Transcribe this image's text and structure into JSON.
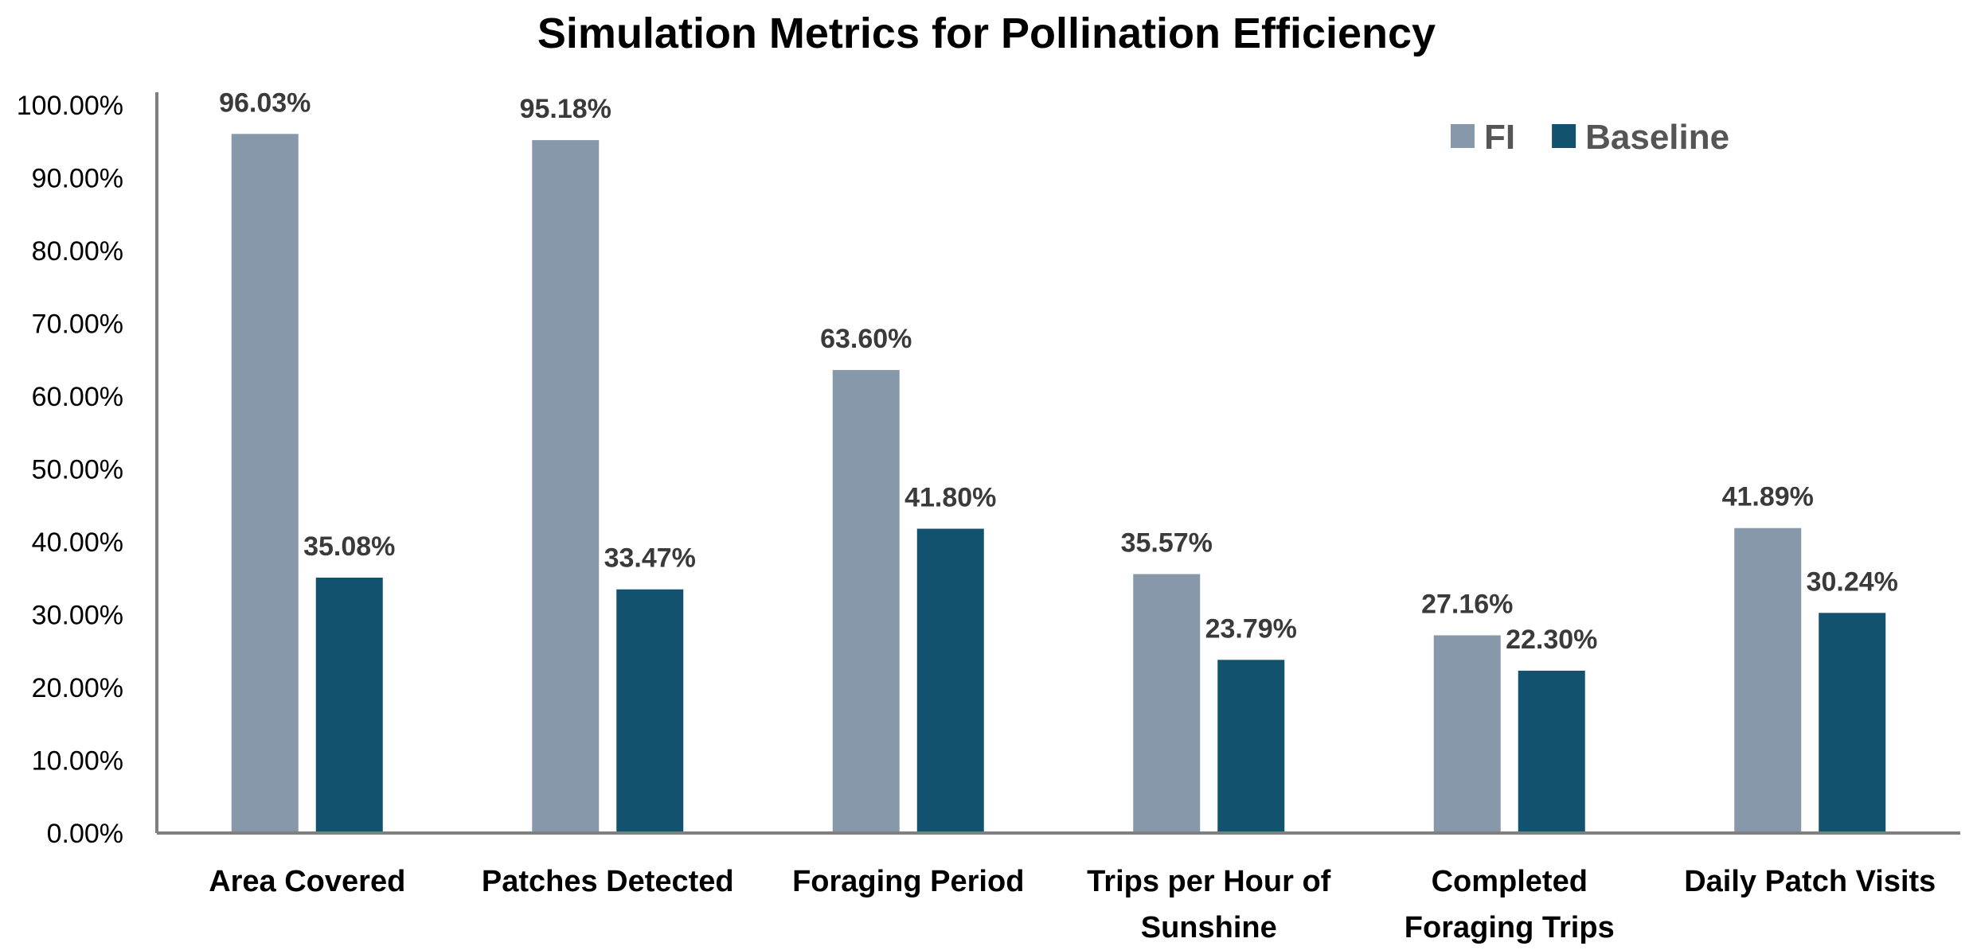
{
  "chart_data": {
    "type": "bar",
    "title": "Simulation Metrics for Pollination Efficiency",
    "xlabel": "",
    "ylabel": "",
    "categories": [
      [
        "Area Covered"
      ],
      [
        "Patches Detected"
      ],
      [
        "Foraging Period"
      ],
      [
        "Trips per Hour of",
        "Sunshine"
      ],
      [
        "Completed",
        "Foraging Trips"
      ],
      [
        "Daily Patch Visits"
      ]
    ],
    "series": [
      {
        "name": "FI",
        "color": "#8798aa",
        "values": [
          96.03,
          95.18,
          63.6,
          35.57,
          27.16,
          41.89
        ],
        "labels": [
          "96.03%",
          "95.18%",
          "63.60%",
          "35.57%",
          "27.16%",
          "41.89%"
        ]
      },
      {
        "name": "Baseline",
        "color": "#13526e",
        "values": [
          35.08,
          33.47,
          41.8,
          23.79,
          22.3,
          30.24
        ],
        "labels": [
          "35.08%",
          "33.47%",
          "41.80%",
          "23.79%",
          "22.30%",
          "30.24%"
        ]
      }
    ],
    "ylim": [
      0,
      100
    ],
    "yticks": [
      0,
      10,
      20,
      30,
      40,
      50,
      60,
      70,
      80,
      90,
      100
    ],
    "ytick_labels": [
      "0.00%",
      "10.00%",
      "20.00%",
      "30.00%",
      "40.00%",
      "50.00%",
      "60.00%",
      "70.00%",
      "80.00%",
      "90.00%",
      "100.00%"
    ],
    "grid": false,
    "legend": "top-right"
  }
}
